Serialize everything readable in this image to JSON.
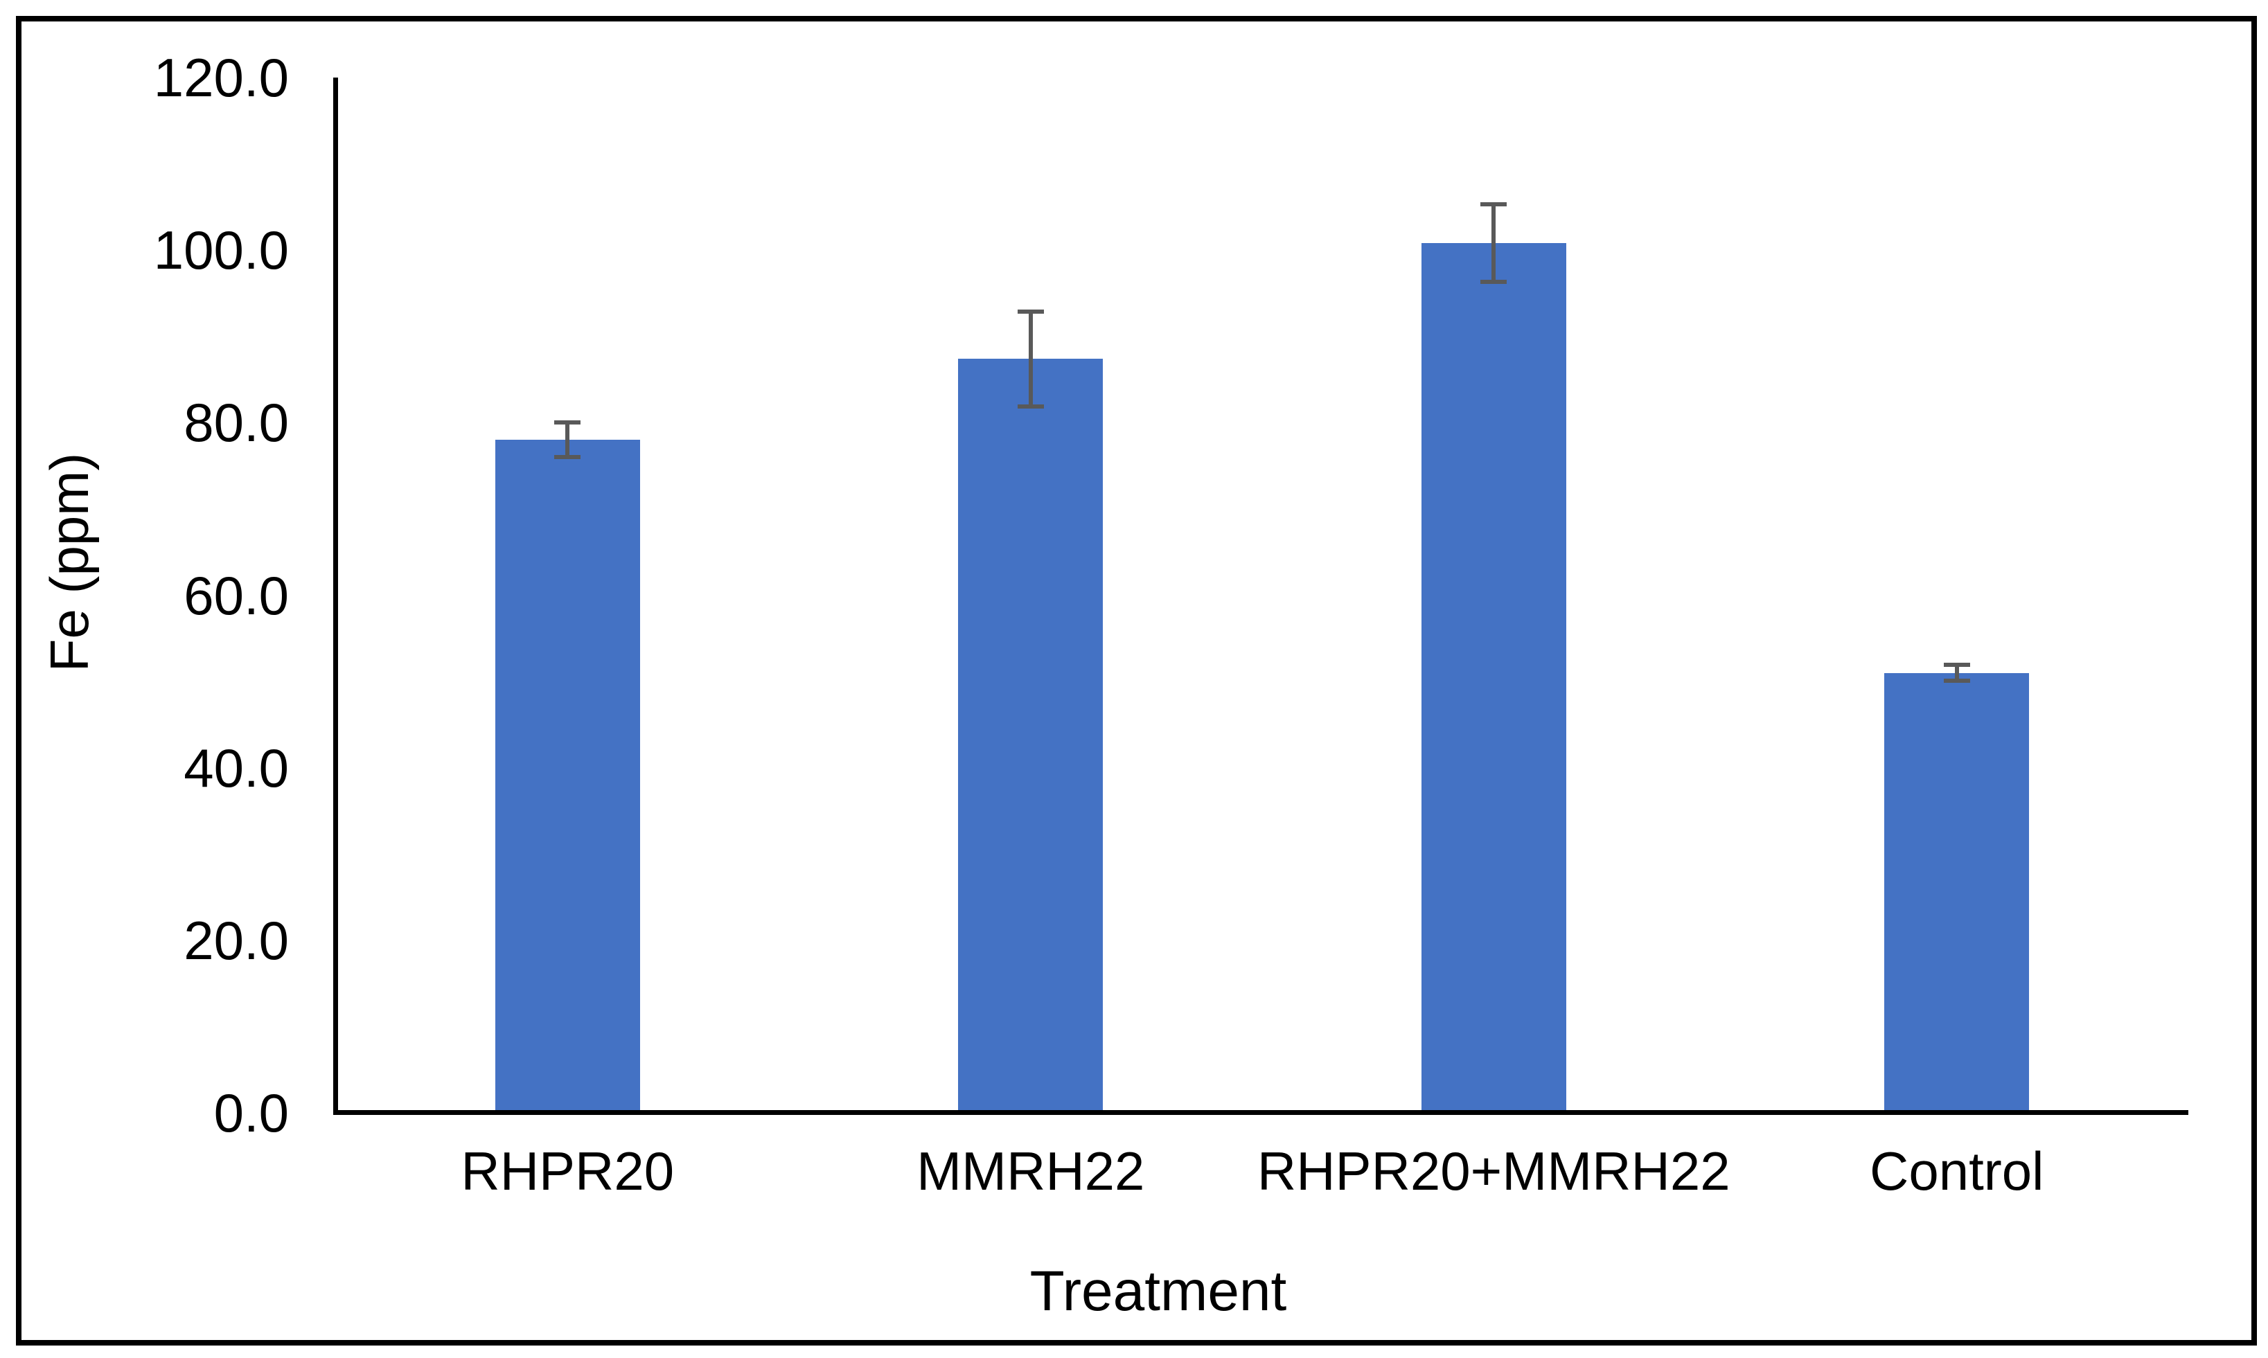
{
  "chart_data": {
    "type": "bar",
    "title": "",
    "categories": [
      "RHPR20",
      "MMRH22",
      "RHPR20+MMRH22",
      "Control"
    ],
    "series": [
      {
        "name": "Fe (ppm)",
        "values": [
          78.0,
          87.4,
          100.8,
          51.0
        ],
        "error_bars": [
          2.0,
          5.5,
          4.5,
          0.9
        ]
      }
    ],
    "xlabel": "Treatment",
    "ylabel": "Fe (ppm)",
    "ylim": [
      0,
      120
    ],
    "ytick_interval": 20,
    "ytick_labels": [
      "0.0",
      "20.0",
      "40.0",
      "60.0",
      "80.0",
      "100.0",
      "120.0"
    ],
    "grid": false,
    "legend": false,
    "colors": {
      "bar_fill": "#4472C4",
      "error_bar": "#595959",
      "axis_line": "#000000",
      "text": "#000000",
      "frame_border": "#000000",
      "background": "#FFFFFF"
    }
  }
}
